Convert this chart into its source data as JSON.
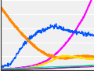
{
  "background_color": "#f0f0f0",
  "plot_bg": "#f0f0f0",
  "grid_color": "#ffffff",
  "xlim": [
    0,
    100
  ],
  "ylim": [
    0,
    100
  ],
  "lines": [
    {
      "color": "#ff00ff",
      "label": "magenta",
      "lw": 1.5,
      "noise": 0.4,
      "points": [
        [
          0,
          1
        ],
        [
          10,
          2
        ],
        [
          20,
          3
        ],
        [
          30,
          5
        ],
        [
          40,
          8
        ],
        [
          50,
          14
        ],
        [
          60,
          24
        ],
        [
          70,
          38
        ],
        [
          80,
          56
        ],
        [
          90,
          78
        ],
        [
          100,
          108
        ]
      ]
    },
    {
      "color": "#0055ff",
      "label": "blue",
      "lw": 1.0,
      "noise": 1.5,
      "points": [
        [
          0,
          4
        ],
        [
          10,
          8
        ],
        [
          20,
          28
        ],
        [
          30,
          45
        ],
        [
          40,
          54
        ],
        [
          50,
          60
        ],
        [
          55,
          63
        ],
        [
          60,
          62
        ],
        [
          70,
          58
        ],
        [
          80,
          55
        ],
        [
          90,
          52
        ],
        [
          100,
          50
        ]
      ]
    },
    {
      "color": "#ff8800",
      "label": "orange",
      "lw": 2.0,
      "noise": 0.5,
      "points": [
        [
          0,
          90
        ],
        [
          10,
          72
        ],
        [
          20,
          56
        ],
        [
          30,
          42
        ],
        [
          40,
          30
        ],
        [
          50,
          22
        ],
        [
          60,
          18
        ],
        [
          70,
          17
        ],
        [
          80,
          19
        ],
        [
          90,
          20
        ],
        [
          100,
          19
        ]
      ]
    },
    {
      "color": "#ffdd00",
      "label": "yellow",
      "lw": 1.3,
      "noise": 0.5,
      "points": [
        [
          0,
          1
        ],
        [
          10,
          1
        ],
        [
          20,
          2
        ],
        [
          30,
          3
        ],
        [
          40,
          6
        ],
        [
          50,
          11
        ],
        [
          60,
          17
        ],
        [
          65,
          20
        ],
        [
          70,
          20
        ],
        [
          80,
          19
        ],
        [
          90,
          17
        ],
        [
          100,
          16
        ]
      ]
    },
    {
      "color": "#00bb00",
      "label": "green",
      "lw": 1.0,
      "noise": 0.15,
      "points": [
        [
          0,
          1
        ],
        [
          20,
          1
        ],
        [
          40,
          2
        ],
        [
          60,
          3
        ],
        [
          80,
          5
        ],
        [
          100,
          7
        ]
      ]
    },
    {
      "color": "#aa00aa",
      "label": "purple",
      "lw": 0.8,
      "noise": 0.1,
      "points": [
        [
          0,
          0.5
        ],
        [
          20,
          1
        ],
        [
          40,
          2
        ],
        [
          60,
          3
        ],
        [
          80,
          4
        ],
        [
          100,
          5
        ]
      ]
    },
    {
      "color": "#00cccc",
      "label": "cyan",
      "lw": 0.8,
      "noise": 0.1,
      "points": [
        [
          0,
          2
        ],
        [
          20,
          3
        ],
        [
          40,
          4
        ],
        [
          60,
          5
        ],
        [
          80,
          6
        ],
        [
          100,
          7
        ]
      ]
    }
  ],
  "n_gridlines": 5,
  "left_spine": true,
  "bottom_spine": true
}
